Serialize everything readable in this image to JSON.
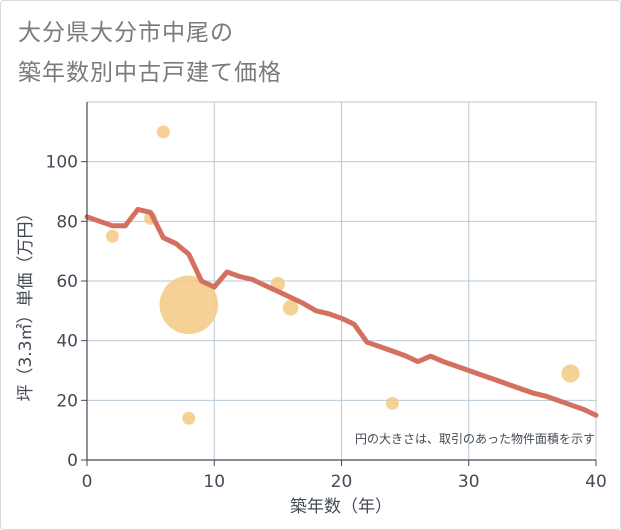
{
  "title_line1": "大分県大分市中尾の",
  "title_line2": "築年数別中古戸建て価格",
  "chart_data": {
    "type": "scatter+line",
    "title": "大分県大分市中尾の築年数別中古戸建て価格",
    "xlabel": "築年数（年）",
    "ylabel": "坪（3.3㎡）単価（万円）",
    "xlim": [
      0,
      40
    ],
    "ylim": [
      0,
      120
    ],
    "xticks": [
      0,
      10,
      20,
      30,
      40
    ],
    "yticks": [
      0,
      20,
      40,
      60,
      80,
      100
    ],
    "grid": true,
    "note": "円の大きさは、取引のあった物件面積を示す",
    "colors": {
      "line": "#d4705f",
      "bubble": "#f5c982",
      "grid": "#b9c9d6"
    },
    "scatter": [
      {
        "x": 2,
        "y": 75,
        "size": 1
      },
      {
        "x": 5,
        "y": 81,
        "size": 1
      },
      {
        "x": 6,
        "y": 110,
        "size": 1
      },
      {
        "x": 8,
        "y": 52,
        "size": 4.5
      },
      {
        "x": 8,
        "y": 14,
        "size": 1
      },
      {
        "x": 15,
        "y": 59,
        "size": 1.1
      },
      {
        "x": 16,
        "y": 51,
        "size": 1.2
      },
      {
        "x": 24,
        "y": 19,
        "size": 1
      },
      {
        "x": 38,
        "y": 29,
        "size": 1.4
      }
    ],
    "line": {
      "x": [
        0,
        1,
        2,
        3,
        4,
        5,
        6,
        7,
        8,
        9,
        10,
        11,
        12,
        13,
        14,
        15,
        16,
        17,
        18,
        19,
        20,
        21,
        22,
        23,
        24,
        25,
        26,
        27,
        28,
        29,
        30,
        31,
        32,
        33,
        34,
        35,
        36,
        37,
        38,
        39,
        40
      ],
      "y": [
        81.5,
        80,
        78.5,
        78.5,
        84,
        83,
        74.5,
        72.5,
        69,
        60,
        58,
        63,
        61.5,
        60.5,
        58.5,
        56.5,
        54.5,
        52.5,
        50,
        49,
        47.5,
        45.5,
        39.5,
        38,
        36.5,
        35,
        33,
        34.8,
        33,
        31.5,
        30,
        28.5,
        27,
        25.5,
        24,
        22.5,
        21.5,
        20,
        18.5,
        17,
        15
      ]
    }
  }
}
